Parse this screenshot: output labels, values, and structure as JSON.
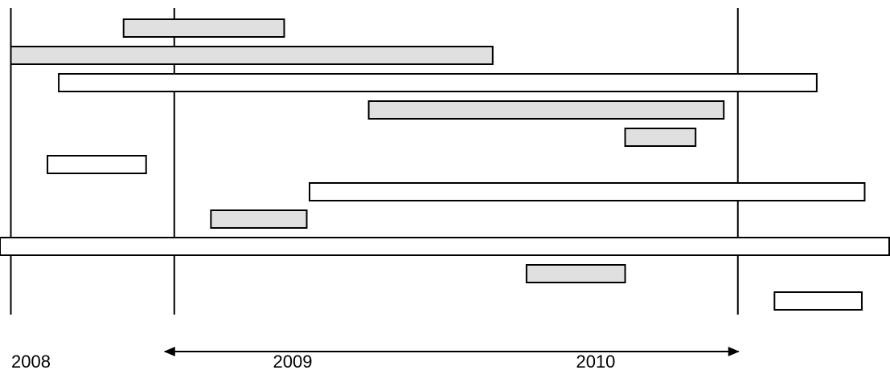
{
  "chart_data": {
    "type": "gantt",
    "title": "",
    "x_unit": "year",
    "xlim": [
      2007.99,
      2011.1
    ],
    "year_labels": [
      {
        "year": 2008,
        "text": "2008"
      },
      {
        "year": 2009,
        "text": "2009"
      },
      {
        "year": 2010,
        "text": "2010"
      }
    ],
    "gridlines": [
      2008,
      2008.58,
      2010.58,
      2011.18
    ],
    "bars": [
      {
        "start": 2008.4,
        "end": 2008.97,
        "fill": "#e0e0e0"
      },
      {
        "start": 2008.0,
        "end": 2009.71,
        "fill": "#e0e0e0"
      },
      {
        "start": 2008.17,
        "end": 2010.86,
        "fill": "#ffffff"
      },
      {
        "start": 2009.27,
        "end": 2010.53,
        "fill": "#e0e0e0"
      },
      {
        "start": 2010.18,
        "end": 2010.43,
        "fill": "#e0e0e0"
      },
      {
        "start": 2008.13,
        "end": 2008.48,
        "fill": "#ffffff"
      },
      {
        "start": 2009.06,
        "end": 2011.03,
        "fill": "#ffffff"
      },
      {
        "start": 2008.71,
        "end": 2009.05,
        "fill": "#e0e0e0"
      },
      {
        "start": 2007.91,
        "end": 2011.31,
        "fill": "#ffffff"
      },
      {
        "start": 2009.83,
        "end": 2010.18,
        "fill": "#e0e0e0"
      },
      {
        "start": 2010.71,
        "end": 2011.02,
        "fill": "#ffffff"
      }
    ],
    "span_arrow": {
      "from": 2008.58,
      "to": 2010.58
    },
    "grid": true,
    "legend": "none"
  },
  "colors": {
    "line": "#000000",
    "shaded": "#e0e0e0",
    "open": "#ffffff"
  }
}
